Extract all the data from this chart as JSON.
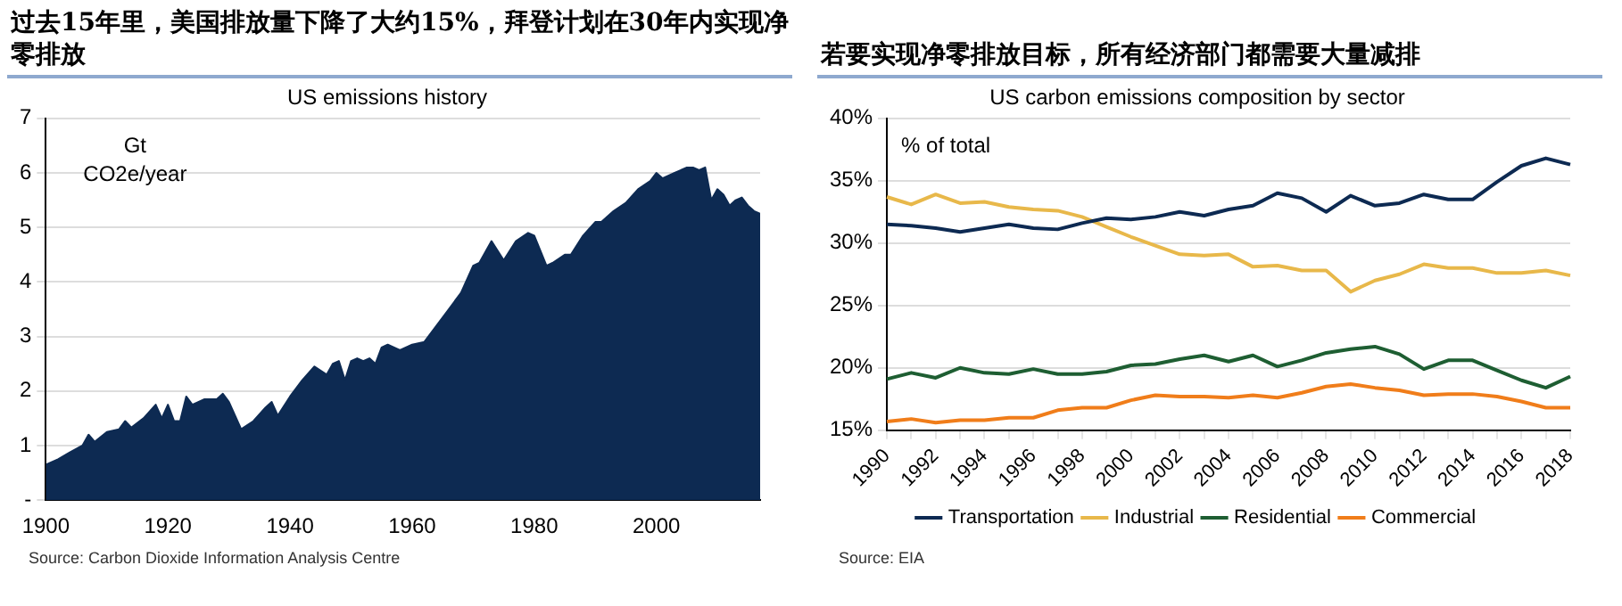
{
  "chart_data": [
    {
      "type": "area",
      "title": "过去15年里，美国排放量下降了大约15%，拜登计划在30年内实现净零排放",
      "subtitle": "US emissions history",
      "ylabel": "Gt CO2e/year",
      "annotations": [
        "Source: Carbon Dioxide Information Analysis Centre"
      ],
      "x": [
        1900,
        1902,
        1904,
        1906,
        1907,
        1908,
        1910,
        1912,
        1913,
        1914,
        1916,
        1918,
        1919,
        1920,
        1921,
        1922,
        1923,
        1924,
        1926,
        1928,
        1929,
        1930,
        1932,
        1934,
        1936,
        1937,
        1938,
        1940,
        1942,
        1944,
        1946,
        1947,
        1948,
        1949,
        1950,
        1951,
        1952,
        1953,
        1954,
        1955,
        1956,
        1958,
        1960,
        1962,
        1964,
        1966,
        1968,
        1970,
        1971,
        1973,
        1975,
        1977,
        1979,
        1980,
        1982,
        1983,
        1985,
        1986,
        1988,
        1990,
        1991,
        1993,
        1995,
        1997,
        1999,
        2000,
        2001,
        2003,
        2005,
        2006,
        2007,
        2008,
        2009,
        2010,
        2011,
        2012,
        2013,
        2014,
        2015,
        2016,
        2017
      ],
      "series": [
        {
          "color": "#0d2a52",
          "values": [
            0.65,
            0.75,
            0.88,
            1.0,
            1.2,
            1.07,
            1.25,
            1.3,
            1.45,
            1.33,
            1.5,
            1.75,
            1.5,
            1.75,
            1.45,
            1.45,
            1.9,
            1.75,
            1.85,
            1.85,
            1.95,
            1.8,
            1.3,
            1.45,
            1.7,
            1.8,
            1.55,
            1.9,
            2.2,
            2.45,
            2.3,
            2.5,
            2.55,
            2.2,
            2.55,
            2.6,
            2.55,
            2.6,
            2.5,
            2.8,
            2.85,
            2.75,
            2.85,
            2.9,
            3.2,
            3.5,
            3.8,
            4.3,
            4.35,
            4.75,
            4.4,
            4.75,
            4.9,
            4.85,
            4.3,
            4.35,
            4.5,
            4.5,
            4.85,
            5.1,
            5.1,
            5.3,
            5.45,
            5.7,
            5.85,
            6.0,
            5.9,
            6.0,
            6.1,
            6.1,
            6.05,
            6.1,
            5.5,
            5.7,
            5.6,
            5.4,
            5.5,
            5.55,
            5.4,
            5.3,
            5.25
          ]
        }
      ],
      "xlim": [
        1900,
        2017
      ],
      "xticks": [
        1900,
        1920,
        1940,
        1960,
        1980,
        2000
      ],
      "ylim": [
        0,
        7
      ],
      "yticks": [
        {
          "value": 0,
          "label": "-"
        },
        1,
        2,
        3,
        4,
        5,
        6,
        7
      ],
      "grid": "y",
      "legend": false
    },
    {
      "type": "line",
      "title": "若要实现净零排放目标，所有经济部门都需要大量减排",
      "subtitle": "US carbon emissions composition by sector",
      "ylabel": "% of total",
      "annotations": [
        "Source: EIA"
      ],
      "categories": [
        "1990",
        null,
        "1992",
        null,
        "1994",
        null,
        "1996",
        null,
        "1998",
        null,
        "2000",
        null,
        "2002",
        null,
        "2004",
        null,
        "2006",
        null,
        "2008",
        null,
        "2010",
        null,
        "2012",
        null,
        "2014",
        null,
        "2016",
        null,
        "2018"
      ],
      "series": [
        {
          "name": "Transportation",
          "color": "#0d2a52",
          "values": [
            31.5,
            31.4,
            31.2,
            30.9,
            31.2,
            31.5,
            31.2,
            31.1,
            31.6,
            32.0,
            31.9,
            32.1,
            32.5,
            32.2,
            32.7,
            33.0,
            34.0,
            33.6,
            32.5,
            33.8,
            33.0,
            33.2,
            33.9,
            33.5,
            33.5,
            34.9,
            36.2,
            36.8,
            36.3
          ]
        },
        {
          "name": "Industrial",
          "color": "#e8b84a",
          "values": [
            33.7,
            33.1,
            33.9,
            33.2,
            33.3,
            32.9,
            32.7,
            32.6,
            32.1,
            31.3,
            30.5,
            29.8,
            29.1,
            29.0,
            29.1,
            28.1,
            28.2,
            27.8,
            27.8,
            26.1,
            27.0,
            27.5,
            28.3,
            28.0,
            28.0,
            27.6,
            27.6,
            27.8,
            27.4
          ]
        },
        {
          "name": "Residential",
          "color": "#1e5e32",
          "values": [
            19.1,
            19.6,
            19.2,
            20.0,
            19.6,
            19.5,
            19.9,
            19.5,
            19.5,
            19.7,
            20.2,
            20.3,
            20.7,
            21.0,
            20.5,
            21.0,
            20.1,
            20.6,
            21.2,
            21.5,
            21.7,
            21.1,
            19.9,
            20.6,
            20.6,
            19.8,
            19.0,
            18.4,
            19.3
          ]
        },
        {
          "name": "Commercial",
          "color": "#f07d1a",
          "values": [
            15.7,
            15.9,
            15.6,
            15.8,
            15.8,
            16.0,
            16.0,
            16.6,
            16.8,
            16.8,
            17.4,
            17.8,
            17.7,
            17.7,
            17.6,
            17.8,
            17.6,
            18.0,
            18.5,
            18.7,
            18.4,
            18.2,
            17.8,
            17.9,
            17.9,
            17.7,
            17.3,
            16.8,
            16.8
          ]
        }
      ],
      "ylim": [
        15,
        40
      ],
      "yticks": [
        {
          "value": 15,
          "label": "15%"
        },
        {
          "value": 20,
          "label": "20%"
        },
        {
          "value": 25,
          "label": "25%"
        },
        {
          "value": 30,
          "label": "30%"
        },
        {
          "value": 35,
          "label": "35%"
        },
        {
          "value": 40,
          "label": "40%"
        }
      ],
      "grid": "y",
      "legend": "bottom",
      "marker": "none",
      "line_style": "solid"
    }
  ]
}
